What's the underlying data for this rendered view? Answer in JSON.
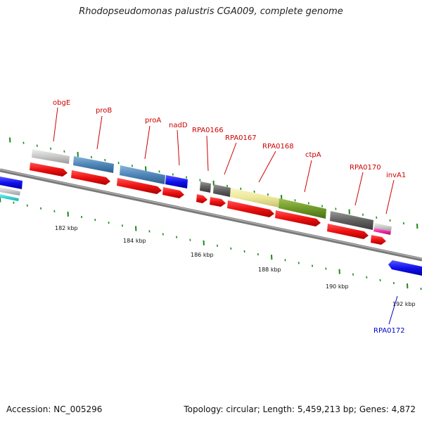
{
  "title": "Rhodopseudomonas palustris CGA009, complete genome",
  "footer": {
    "accession": "Accession: NC_005296",
    "summary": "Topology: circular; Length: 5,459,213 bp; Genes: 4,872"
  },
  "ruler_labels": [
    "182 kbp",
    "184 kbp",
    "186 kbp",
    "188 kbp",
    "190 kbp",
    "192 kbp"
  ],
  "gene_labels": [
    "obgE",
    "proB",
    "proA",
    "nadD",
    "RPA0166",
    "RPA0167",
    "RPA0168",
    "ctpA",
    "RPA0170",
    "invA1",
    "RPA0172"
  ],
  "colors": {
    "cds_red": "#ee1111",
    "backbone": "#808080",
    "tick_green": "#1a8a1a",
    "label_red": "#cc0000",
    "label_blue": "#0000cc",
    "steel_blue": "#4f86b8",
    "blue": "#1010ee",
    "dark_gray": "#606060",
    "khaki": "#ece89a",
    "olive": "#6f9a2a",
    "light_gray": "#c8c8c8",
    "magenta": "#ee2aa8"
  }
}
